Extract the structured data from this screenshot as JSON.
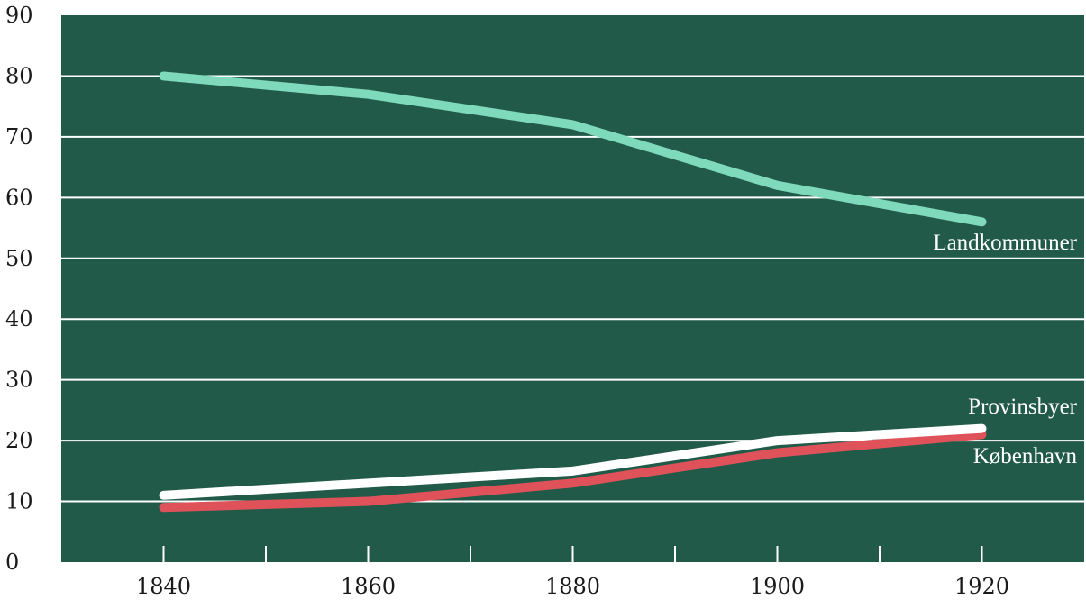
{
  "chart_data": {
    "type": "line",
    "title": "",
    "xlabel": "",
    "ylabel": "",
    "xlim": [
      1830,
      1930
    ],
    "ylim": [
      0,
      90
    ],
    "x_ticks": [
      1840,
      1860,
      1880,
      1900,
      1920
    ],
    "x_minor_ticks": [
      1850,
      1870,
      1890,
      1910
    ],
    "y_ticks": [
      0,
      10,
      20,
      30,
      40,
      50,
      60,
      70,
      80,
      90
    ],
    "grid": "horizontal",
    "background_color": "#215a48",
    "x": [
      1840,
      1860,
      1880,
      1900,
      1920
    ],
    "series": [
      {
        "name": "Landkommuner",
        "values": [
          80,
          77,
          72,
          62,
          56
        ],
        "color": "#7fd9bb"
      },
      {
        "name": "Provinsbyer",
        "values": [
          11,
          13,
          15,
          20,
          22
        ],
        "color": "#ffffff"
      },
      {
        "name": "København",
        "values": [
          9,
          10,
          13,
          18,
          21
        ],
        "color": "#e0525a"
      }
    ]
  }
}
